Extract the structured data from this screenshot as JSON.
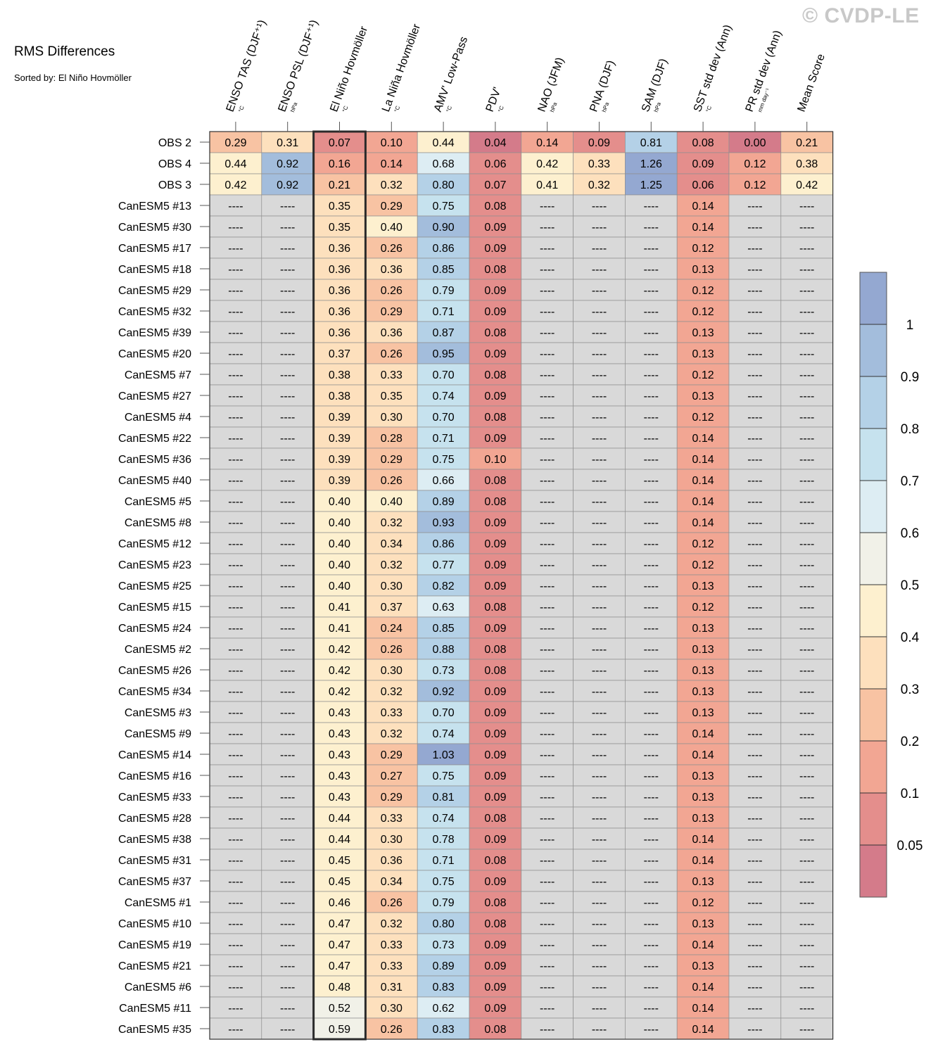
{
  "watermark": "© CVDP-LE",
  "title": "RMS Differences",
  "subtitle": "Sorted by: El Niño Hovmöller",
  "chart_data": {
    "type": "heatmap",
    "columns": [
      {
        "label": "ENSO TAS (DJF⁺¹)",
        "unit": "°C"
      },
      {
        "label": "ENSO PSL (DJF⁺¹)",
        "unit": "hPa"
      },
      {
        "label": "El Niño Hovmöller",
        "unit": "°C"
      },
      {
        "label": "La Niña Hovmöller",
        "unit": "°C"
      },
      {
        "label": "AMV' Low-Pass",
        "unit": "°C"
      },
      {
        "label": "PDV'",
        "unit": "°C"
      },
      {
        "label": "NAO (JFM)",
        "unit": "hPa"
      },
      {
        "label": "PNA (DJF)",
        "unit": "hPa"
      },
      {
        "label": "SAM (DJF)",
        "unit": "hPa"
      },
      {
        "label": "SST std dev (Ann)",
        "unit": "°C"
      },
      {
        "label": "PR std dev (Ann)",
        "unit": "mm day⁻¹"
      },
      {
        "label": "Mean Score",
        "unit": ""
      }
    ],
    "highlighted_column": 2,
    "missing_text": "----",
    "rows": [
      {
        "label": "OBS 2",
        "values": [
          0.29,
          0.31,
          0.07,
          0.1,
          0.44,
          0.04,
          0.14,
          0.09,
          0.81,
          0.08,
          0.0,
          0.21
        ]
      },
      {
        "label": "OBS 4",
        "values": [
          0.44,
          0.92,
          0.16,
          0.14,
          0.68,
          0.06,
          0.42,
          0.33,
          1.26,
          0.09,
          0.12,
          0.38
        ]
      },
      {
        "label": "OBS 3",
        "values": [
          0.42,
          0.92,
          0.21,
          0.32,
          0.8,
          0.07,
          0.41,
          0.32,
          1.25,
          0.06,
          0.12,
          0.42
        ]
      },
      {
        "label": "CanESM5 #13",
        "values": [
          null,
          null,
          0.35,
          0.29,
          0.75,
          0.08,
          null,
          null,
          null,
          0.14,
          null,
          null
        ]
      },
      {
        "label": "CanESM5 #30",
        "values": [
          null,
          null,
          0.35,
          0.4,
          0.9,
          0.09,
          null,
          null,
          null,
          0.14,
          null,
          null
        ]
      },
      {
        "label": "CanESM5 #17",
        "values": [
          null,
          null,
          0.36,
          0.26,
          0.86,
          0.09,
          null,
          null,
          null,
          0.12,
          null,
          null
        ]
      },
      {
        "label": "CanESM5 #18",
        "values": [
          null,
          null,
          0.36,
          0.36,
          0.85,
          0.08,
          null,
          null,
          null,
          0.13,
          null,
          null
        ]
      },
      {
        "label": "CanESM5 #29",
        "values": [
          null,
          null,
          0.36,
          0.26,
          0.79,
          0.09,
          null,
          null,
          null,
          0.12,
          null,
          null
        ]
      },
      {
        "label": "CanESM5 #32",
        "values": [
          null,
          null,
          0.36,
          0.29,
          0.71,
          0.09,
          null,
          null,
          null,
          0.12,
          null,
          null
        ]
      },
      {
        "label": "CanESM5 #39",
        "values": [
          null,
          null,
          0.36,
          0.36,
          0.87,
          0.08,
          null,
          null,
          null,
          0.13,
          null,
          null
        ]
      },
      {
        "label": "CanESM5 #20",
        "values": [
          null,
          null,
          0.37,
          0.26,
          0.95,
          0.09,
          null,
          null,
          null,
          0.13,
          null,
          null
        ]
      },
      {
        "label": "CanESM5 #7",
        "values": [
          null,
          null,
          0.38,
          0.33,
          0.7,
          0.08,
          null,
          null,
          null,
          0.12,
          null,
          null
        ]
      },
      {
        "label": "CanESM5 #27",
        "values": [
          null,
          null,
          0.38,
          0.35,
          0.74,
          0.09,
          null,
          null,
          null,
          0.13,
          null,
          null
        ]
      },
      {
        "label": "CanESM5 #4",
        "values": [
          null,
          null,
          0.39,
          0.3,
          0.7,
          0.08,
          null,
          null,
          null,
          0.12,
          null,
          null
        ]
      },
      {
        "label": "CanESM5 #22",
        "values": [
          null,
          null,
          0.39,
          0.28,
          0.71,
          0.09,
          null,
          null,
          null,
          0.14,
          null,
          null
        ]
      },
      {
        "label": "CanESM5 #36",
        "values": [
          null,
          null,
          0.39,
          0.29,
          0.75,
          0.1,
          null,
          null,
          null,
          0.14,
          null,
          null
        ]
      },
      {
        "label": "CanESM5 #40",
        "values": [
          null,
          null,
          0.39,
          0.26,
          0.66,
          0.08,
          null,
          null,
          null,
          0.14,
          null,
          null
        ]
      },
      {
        "label": "CanESM5 #5",
        "values": [
          null,
          null,
          0.4,
          0.4,
          0.89,
          0.08,
          null,
          null,
          null,
          0.14,
          null,
          null
        ]
      },
      {
        "label": "CanESM5 #8",
        "values": [
          null,
          null,
          0.4,
          0.32,
          0.93,
          0.09,
          null,
          null,
          null,
          0.14,
          null,
          null
        ]
      },
      {
        "label": "CanESM5 #12",
        "values": [
          null,
          null,
          0.4,
          0.34,
          0.86,
          0.09,
          null,
          null,
          null,
          0.12,
          null,
          null
        ]
      },
      {
        "label": "CanESM5 #23",
        "values": [
          null,
          null,
          0.4,
          0.32,
          0.77,
          0.09,
          null,
          null,
          null,
          0.12,
          null,
          null
        ]
      },
      {
        "label": "CanESM5 #25",
        "values": [
          null,
          null,
          0.4,
          0.3,
          0.82,
          0.09,
          null,
          null,
          null,
          0.13,
          null,
          null
        ]
      },
      {
        "label": "CanESM5 #15",
        "values": [
          null,
          null,
          0.41,
          0.37,
          0.63,
          0.08,
          null,
          null,
          null,
          0.12,
          null,
          null
        ]
      },
      {
        "label": "CanESM5 #24",
        "values": [
          null,
          null,
          0.41,
          0.24,
          0.85,
          0.09,
          null,
          null,
          null,
          0.13,
          null,
          null
        ]
      },
      {
        "label": "CanESM5 #2",
        "values": [
          null,
          null,
          0.42,
          0.26,
          0.88,
          0.08,
          null,
          null,
          null,
          0.13,
          null,
          null
        ]
      },
      {
        "label": "CanESM5 #26",
        "values": [
          null,
          null,
          0.42,
          0.3,
          0.73,
          0.08,
          null,
          null,
          null,
          0.13,
          null,
          null
        ]
      },
      {
        "label": "CanESM5 #34",
        "values": [
          null,
          null,
          0.42,
          0.32,
          0.92,
          0.09,
          null,
          null,
          null,
          0.13,
          null,
          null
        ]
      },
      {
        "label": "CanESM5 #3",
        "values": [
          null,
          null,
          0.43,
          0.33,
          0.7,
          0.09,
          null,
          null,
          null,
          0.13,
          null,
          null
        ]
      },
      {
        "label": "CanESM5 #9",
        "values": [
          null,
          null,
          0.43,
          0.32,
          0.74,
          0.09,
          null,
          null,
          null,
          0.14,
          null,
          null
        ]
      },
      {
        "label": "CanESM5 #14",
        "values": [
          null,
          null,
          0.43,
          0.29,
          1.03,
          0.09,
          null,
          null,
          null,
          0.14,
          null,
          null
        ]
      },
      {
        "label": "CanESM5 #16",
        "values": [
          null,
          null,
          0.43,
          0.27,
          0.75,
          0.09,
          null,
          null,
          null,
          0.13,
          null,
          null
        ]
      },
      {
        "label": "CanESM5 #33",
        "values": [
          null,
          null,
          0.43,
          0.29,
          0.81,
          0.09,
          null,
          null,
          null,
          0.13,
          null,
          null
        ]
      },
      {
        "label": "CanESM5 #28",
        "values": [
          null,
          null,
          0.44,
          0.33,
          0.74,
          0.08,
          null,
          null,
          null,
          0.13,
          null,
          null
        ]
      },
      {
        "label": "CanESM5 #38",
        "values": [
          null,
          null,
          0.44,
          0.3,
          0.78,
          0.09,
          null,
          null,
          null,
          0.14,
          null,
          null
        ]
      },
      {
        "label": "CanESM5 #31",
        "values": [
          null,
          null,
          0.45,
          0.36,
          0.71,
          0.08,
          null,
          null,
          null,
          0.14,
          null,
          null
        ]
      },
      {
        "label": "CanESM5 #37",
        "values": [
          null,
          null,
          0.45,
          0.34,
          0.75,
          0.09,
          null,
          null,
          null,
          0.13,
          null,
          null
        ]
      },
      {
        "label": "CanESM5 #1",
        "values": [
          null,
          null,
          0.46,
          0.26,
          0.79,
          0.08,
          null,
          null,
          null,
          0.12,
          null,
          null
        ]
      },
      {
        "label": "CanESM5 #10",
        "values": [
          null,
          null,
          0.47,
          0.32,
          0.8,
          0.08,
          null,
          null,
          null,
          0.13,
          null,
          null
        ]
      },
      {
        "label": "CanESM5 #19",
        "values": [
          null,
          null,
          0.47,
          0.33,
          0.73,
          0.09,
          null,
          null,
          null,
          0.14,
          null,
          null
        ]
      },
      {
        "label": "CanESM5 #21",
        "values": [
          null,
          null,
          0.47,
          0.33,
          0.89,
          0.09,
          null,
          null,
          null,
          0.13,
          null,
          null
        ]
      },
      {
        "label": "CanESM5 #6",
        "values": [
          null,
          null,
          0.48,
          0.31,
          0.83,
          0.09,
          null,
          null,
          null,
          0.14,
          null,
          null
        ]
      },
      {
        "label": "CanESM5 #11",
        "values": [
          null,
          null,
          0.52,
          0.3,
          0.62,
          0.09,
          null,
          null,
          null,
          0.14,
          null,
          null
        ]
      },
      {
        "label": "CanESM5 #35",
        "values": [
          null,
          null,
          0.59,
          0.26,
          0.83,
          0.08,
          null,
          null,
          null,
          0.14,
          null,
          null
        ]
      }
    ],
    "colorbar": {
      "levels": [
        0.05,
        0.1,
        0.2,
        0.3,
        0.4,
        0.5,
        0.6,
        0.7,
        0.8,
        0.9,
        1
      ],
      "tick_labels": [
        "0.05",
        "0.1",
        "0.2",
        "0.3",
        "0.4",
        "0.5",
        "0.6",
        "0.7",
        "0.8",
        "0.9",
        "1"
      ],
      "colors": [
        "#d47b8a",
        "#e48e8c",
        "#f2a693",
        "#f8c3a3",
        "#fde0bd",
        "#fdf0cf",
        "#f1f1e8",
        "#ddedf3",
        "#c6e2ee",
        "#b4d1e7",
        "#a3bddc",
        "#94a8d1"
      ],
      "missing_color": "#d9d9d9"
    }
  }
}
